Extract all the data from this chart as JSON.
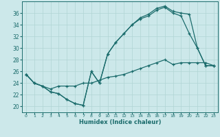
{
  "xlabel": "Humidex (Indice chaleur)",
  "bg_color": "#cce8ea",
  "line_color": "#1a6b6b",
  "grid_color": "#b0d4d4",
  "xlim": [
    -0.5,
    23.5
  ],
  "ylim": [
    19.0,
    38.0
  ],
  "xticks": [
    0,
    1,
    2,
    3,
    4,
    5,
    6,
    7,
    8,
    9,
    10,
    11,
    12,
    13,
    14,
    15,
    16,
    17,
    18,
    19,
    20,
    21,
    22,
    23
  ],
  "yticks": [
    20,
    22,
    24,
    26,
    28,
    30,
    32,
    34,
    36
  ],
  "line1_x": [
    0,
    1,
    2,
    3,
    4,
    5,
    6,
    7,
    8,
    9,
    10,
    11,
    12,
    13,
    14,
    15,
    16,
    17,
    18,
    19,
    20,
    21,
    22,
    23
  ],
  "line1_y": [
    25.5,
    24.0,
    23.5,
    22.5,
    22.2,
    21.2,
    20.5,
    20.2,
    26.0,
    24.0,
    29.0,
    31.0,
    32.5,
    34.0,
    35.0,
    35.5,
    36.5,
    37.0,
    36.0,
    35.5,
    32.5,
    30.0,
    27.0,
    27.0
  ],
  "line2_x": [
    0,
    1,
    2,
    3,
    4,
    5,
    6,
    7,
    8,
    9,
    10,
    11,
    12,
    13,
    14,
    15,
    16,
    17,
    18,
    19,
    20,
    21,
    22,
    23
  ],
  "line2_y": [
    25.5,
    24.0,
    23.5,
    22.5,
    22.2,
    21.2,
    20.5,
    20.2,
    26.0,
    24.0,
    29.0,
    31.0,
    32.5,
    34.0,
    35.2,
    35.8,
    36.8,
    37.2,
    36.3,
    36.0,
    35.8,
    30.0,
    27.0,
    27.0
  ],
  "line3_x": [
    0,
    1,
    2,
    3,
    4,
    5,
    6,
    7,
    8,
    9,
    10,
    11,
    12,
    13,
    14,
    15,
    16,
    17,
    18,
    19,
    20,
    21,
    22,
    23
  ],
  "line3_y": [
    25.5,
    24.0,
    23.5,
    23.0,
    23.5,
    23.5,
    23.5,
    24.0,
    24.0,
    24.5,
    25.0,
    25.2,
    25.5,
    26.0,
    26.5,
    27.0,
    27.5,
    28.0,
    27.2,
    27.5,
    27.5,
    27.5,
    27.5,
    27.0
  ],
  "figsize": [
    3.2,
    2.0
  ],
  "dpi": 100
}
